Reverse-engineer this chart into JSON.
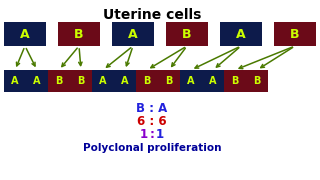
{
  "title": "Uterine cells",
  "title_fontsize": 10,
  "bg_color": "#ffffff",
  "dark_blue": "#0d1b4b",
  "dark_red": "#6b0a18",
  "letter_color": "#ccff00",
  "arrow_color": "#4a7a00",
  "top_row": [
    "A",
    "B",
    "A",
    "B",
    "A",
    "B"
  ],
  "top_colors": [
    "blue",
    "red",
    "blue",
    "red",
    "blue",
    "red"
  ],
  "bottom_row": [
    "A",
    "A",
    "B",
    "B",
    "A",
    "A",
    "B",
    "B",
    "A",
    "A",
    "B",
    "B"
  ],
  "bottom_colors": [
    "blue",
    "blue",
    "red",
    "red",
    "blue",
    "blue",
    "red",
    "red",
    "blue",
    "blue",
    "red",
    "red"
  ],
  "ratio_B_color": "#2222dd",
  "ratio_A_color": "#2222dd",
  "ratio_colon_color": "#2222dd",
  "num6B_color": "#cc0000",
  "num6A_color": "#cc0000",
  "num6_colon_color": "#cc0000",
  "num1B_color": "#8800cc",
  "num1A_color": "#2222dd",
  "num1_colon_color": "#8800cc",
  "conclusion": "Polyclonal proliferation",
  "conclusion_color": "#000099",
  "conclusion_fontsize": 7.5
}
